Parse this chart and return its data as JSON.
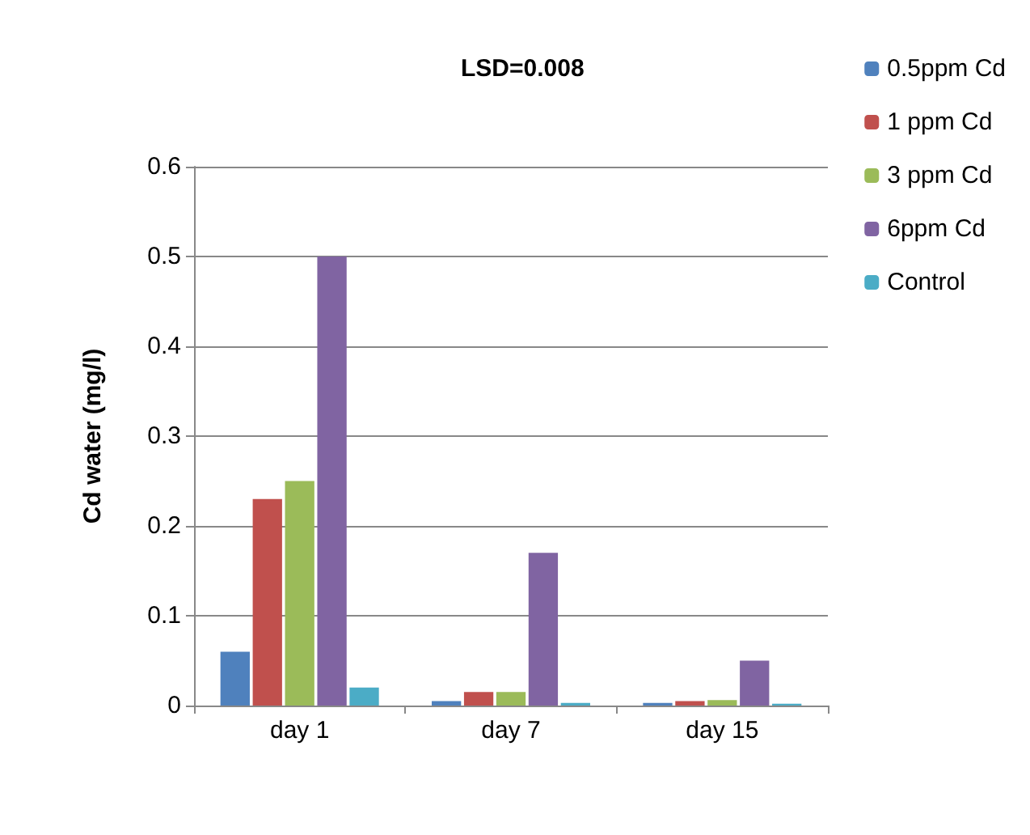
{
  "chart_data": {
    "type": "bar",
    "title": "LSD=0.008",
    "ylabel": "Cd water (mg/l)",
    "categories": [
      "day 1",
      "day 7",
      "day 15"
    ],
    "series": [
      {
        "name": "0.5ppm Cd",
        "color": "#4f81bd",
        "values": [
          0.06,
          0.005,
          0.003
        ]
      },
      {
        "name": "1 ppm Cd",
        "color": "#c0504d",
        "values": [
          0.23,
          0.015,
          0.005
        ]
      },
      {
        "name": "3 ppm Cd",
        "color": "#9bbb59",
        "values": [
          0.25,
          0.015,
          0.006
        ]
      },
      {
        "name": "6ppm Cd",
        "color": "#8064a2",
        "values": [
          0.5,
          0.17,
          0.05
        ]
      },
      {
        "name": "Control",
        "color": "#4bacc6",
        "values": [
          0.02,
          0.003,
          0.002
        ]
      }
    ],
    "ylim": [
      0,
      0.6
    ],
    "yticks": [
      0,
      0.1,
      0.2,
      0.3,
      0.4,
      0.5,
      0.6
    ],
    "grid": "y",
    "legend": "top right"
  }
}
